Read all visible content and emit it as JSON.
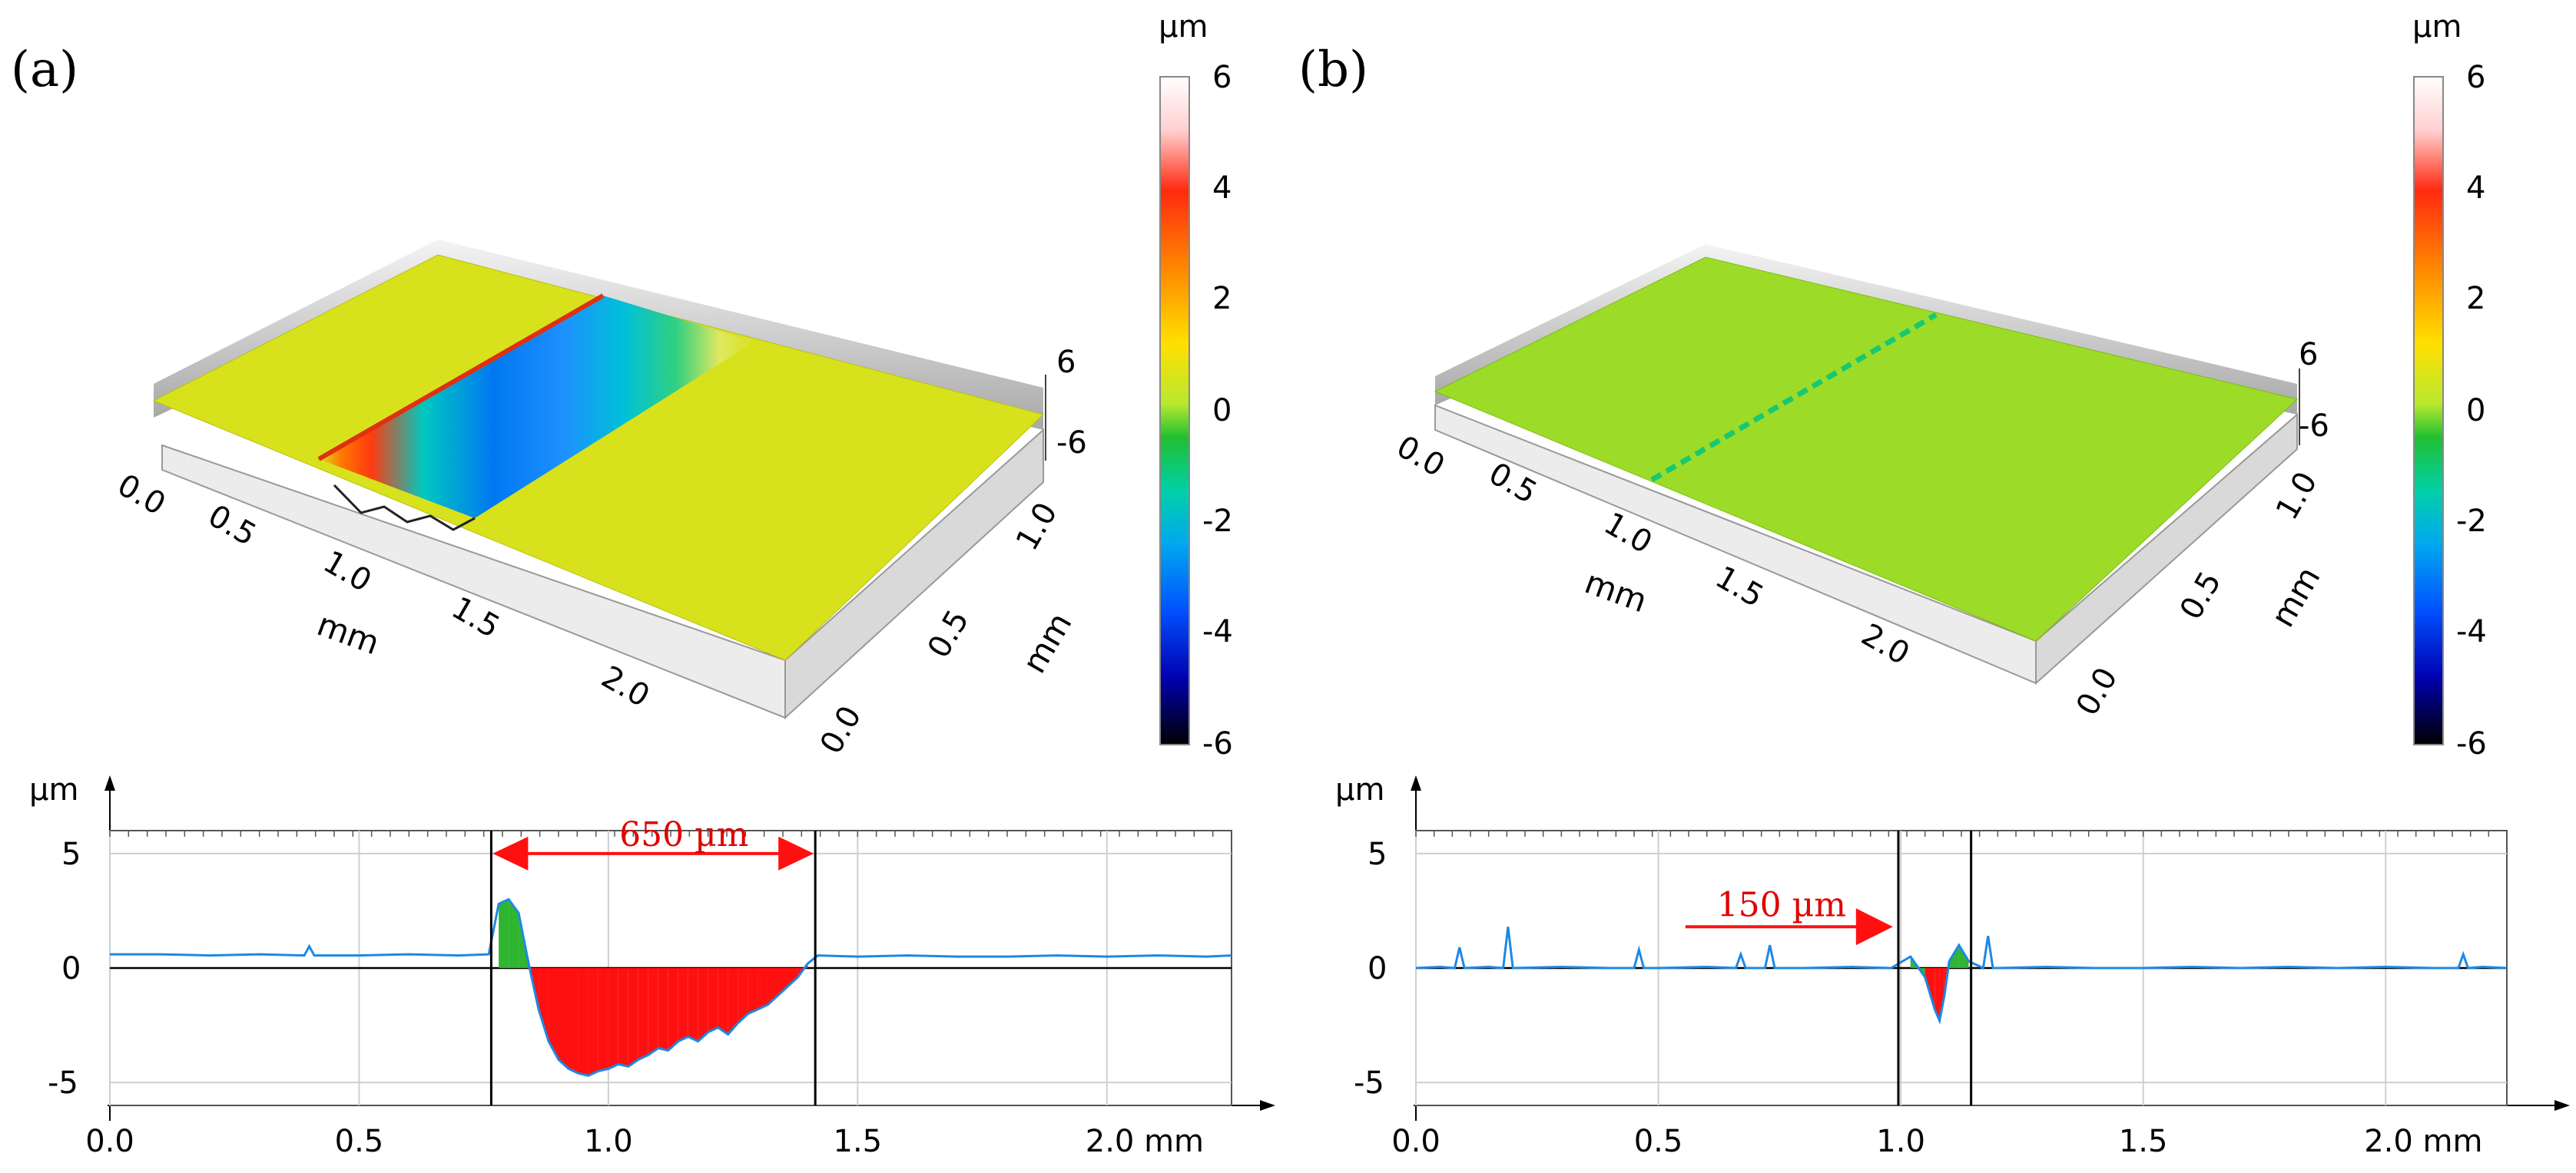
{
  "figure": {
    "panels": [
      {
        "id": "a",
        "label": "(a)",
        "surface": {
          "x_unit": "mm",
          "y_unit": "mm",
          "x_ticks": [
            "0.0",
            "0.5",
            "1.0",
            "1.5",
            "2.0"
          ],
          "y_ticks": [
            "0.0",
            "0.5",
            "1.0"
          ],
          "z_ticks": [
            "6",
            "-6"
          ],
          "feature": "wide scratch, deep trough (blue) bordered by raised ridge (red)"
        },
        "colorbar": {
          "unit": "µm",
          "ticks": [
            "6",
            "4",
            "2",
            "0",
            "-2",
            "-4",
            "-6"
          ]
        },
        "profile": {
          "y_unit": "µm",
          "y_ticks": [
            "5",
            "0",
            "-5"
          ],
          "x_ticks": [
            "0.0",
            "0.5",
            "1.0",
            "1.5",
            "2.0 mm"
          ],
          "annotation": "650 µm",
          "colors": {
            "line": "#1e88e5",
            "above": "#2fb52f",
            "below": "#ff1010",
            "arrow": "#ff1010",
            "annotation_text": "#e00000"
          }
        }
      },
      {
        "id": "b",
        "label": "(b)",
        "surface": {
          "x_unit": "mm",
          "y_unit": "mm",
          "x_ticks": [
            "0.0",
            "0.5",
            "1.0",
            "1.5",
            "2.0"
          ],
          "y_ticks": [
            "0.0",
            "0.5",
            "1.0"
          ],
          "z_ticks": [
            "6",
            "-6"
          ],
          "feature": "narrow shallow scratch"
        },
        "colorbar": {
          "unit": "µm",
          "ticks": [
            "6",
            "4",
            "2",
            "0",
            "-2",
            "-4",
            "-6"
          ]
        },
        "profile": {
          "y_unit": "µm",
          "y_ticks": [
            "5",
            "0",
            "-5"
          ],
          "x_ticks": [
            "0.0",
            "0.5",
            "1.0",
            "1.5",
            "2.0 mm"
          ],
          "annotation": "150 µm",
          "colors": {
            "line": "#1e88e5",
            "above": "#2fb52f",
            "below": "#ff1010",
            "arrow": "#ff1010",
            "annotation_text": "#e00000"
          }
        }
      }
    ]
  },
  "chart_data": [
    {
      "type": "surface",
      "panel": "a",
      "title": "",
      "xlabel": "mm",
      "ylabel": "mm",
      "colorbar": {
        "label": "µm",
        "range": [
          -6,
          6
        ],
        "ticks": [
          6,
          4,
          2,
          0,
          -2,
          -4,
          -6
        ]
      },
      "xlim": [
        0.0,
        2.5
      ],
      "ylim": [
        0.0,
        1.2
      ],
      "zlim": [
        -6,
        6
      ]
    },
    {
      "type": "line",
      "panel": "a",
      "title": "",
      "xlabel": "mm",
      "ylabel": "µm",
      "xlim": [
        0.0,
        2.25
      ],
      "ylim": [
        -6,
        6
      ],
      "xticks": [
        0.0,
        0.5,
        1.0,
        1.5,
        2.0
      ],
      "yticks": [
        -5,
        0,
        5
      ],
      "markers_x": [
        0.765,
        1.415
      ],
      "annotation": {
        "text": "650 µm",
        "from_x": 0.765,
        "to_x": 1.415,
        "y": 5.0
      },
      "series": [
        {
          "name": "profile",
          "x": [
            0.0,
            0.1,
            0.2,
            0.3,
            0.39,
            0.4,
            0.41,
            0.5,
            0.6,
            0.7,
            0.76,
            0.78,
            0.8,
            0.82,
            0.84,
            0.86,
            0.88,
            0.9,
            0.92,
            0.94,
            0.96,
            0.98,
            1.0,
            1.02,
            1.04,
            1.06,
            1.08,
            1.1,
            1.12,
            1.14,
            1.16,
            1.18,
            1.2,
            1.22,
            1.24,
            1.26,
            1.28,
            1.3,
            1.32,
            1.34,
            1.36,
            1.38,
            1.4,
            1.42,
            1.5,
            1.6,
            1.7,
            1.8,
            1.9,
            2.0,
            2.1,
            2.2,
            2.25
          ],
          "y": [
            0.6,
            0.6,
            0.55,
            0.6,
            0.55,
            0.95,
            0.55,
            0.55,
            0.6,
            0.55,
            0.6,
            2.8,
            3.0,
            2.4,
            0.2,
            -1.8,
            -3.2,
            -4.0,
            -4.4,
            -4.6,
            -4.7,
            -4.5,
            -4.4,
            -4.2,
            -4.3,
            -4.0,
            -3.8,
            -3.5,
            -3.6,
            -3.2,
            -3.0,
            -3.2,
            -2.8,
            -2.6,
            -2.9,
            -2.4,
            -2.0,
            -1.8,
            -1.6,
            -1.2,
            -0.8,
            -0.4,
            0.2,
            0.55,
            0.5,
            0.55,
            0.5,
            0.5,
            0.55,
            0.5,
            0.55,
            0.5,
            0.55
          ]
        }
      ]
    },
    {
      "type": "surface",
      "panel": "b",
      "title": "",
      "xlabel": "mm",
      "ylabel": "mm",
      "colorbar": {
        "label": "µm",
        "range": [
          -6,
          6
        ],
        "ticks": [
          6,
          4,
          2,
          0,
          -2,
          -4,
          -6
        ]
      },
      "xlim": [
        0.0,
        2.5
      ],
      "ylim": [
        0.0,
        1.2
      ],
      "zlim": [
        -6,
        6
      ]
    },
    {
      "type": "line",
      "panel": "b",
      "title": "",
      "xlabel": "mm",
      "ylabel": "µm",
      "xlim": [
        0.0,
        2.25
      ],
      "ylim": [
        -6,
        6
      ],
      "xticks": [
        0.0,
        0.5,
        1.0,
        1.5,
        2.0
      ],
      "yticks": [
        -5,
        0,
        5
      ],
      "markers_x": [
        0.995,
        1.145
      ],
      "annotation": {
        "text": "150 µm",
        "arrow_to_x": 0.99,
        "y": 1.8
      },
      "series": [
        {
          "name": "profile",
          "x": [
            0.0,
            0.05,
            0.08,
            0.09,
            0.1,
            0.15,
            0.18,
            0.19,
            0.2,
            0.3,
            0.4,
            0.45,
            0.46,
            0.47,
            0.5,
            0.6,
            0.66,
            0.67,
            0.68,
            0.72,
            0.73,
            0.74,
            0.8,
            0.9,
            0.98,
            1.02,
            1.05,
            1.07,
            1.08,
            1.09,
            1.1,
            1.12,
            1.14,
            1.17,
            1.18,
            1.19,
            1.2,
            1.3,
            1.4,
            1.5,
            1.6,
            1.7,
            1.8,
            1.9,
            2.0,
            2.1,
            2.15,
            2.16,
            2.17,
            2.2,
            2.25
          ],
          "y": [
            0.0,
            0.05,
            0.0,
            0.9,
            0.0,
            0.05,
            0.0,
            1.8,
            0.0,
            0.05,
            0.0,
            0.0,
            0.8,
            0.0,
            0.0,
            0.05,
            0.0,
            0.6,
            0.0,
            0.0,
            1.0,
            0.0,
            0.0,
            0.05,
            0.0,
            0.5,
            -0.4,
            -1.8,
            -2.3,
            -1.2,
            0.3,
            1.0,
            0.3,
            0.0,
            1.4,
            0.0,
            0.0,
            0.05,
            0.0,
            0.0,
            0.05,
            0.0,
            0.05,
            0.0,
            0.05,
            0.0,
            0.0,
            0.6,
            0.0,
            0.05,
            0.0
          ]
        }
      ]
    }
  ]
}
